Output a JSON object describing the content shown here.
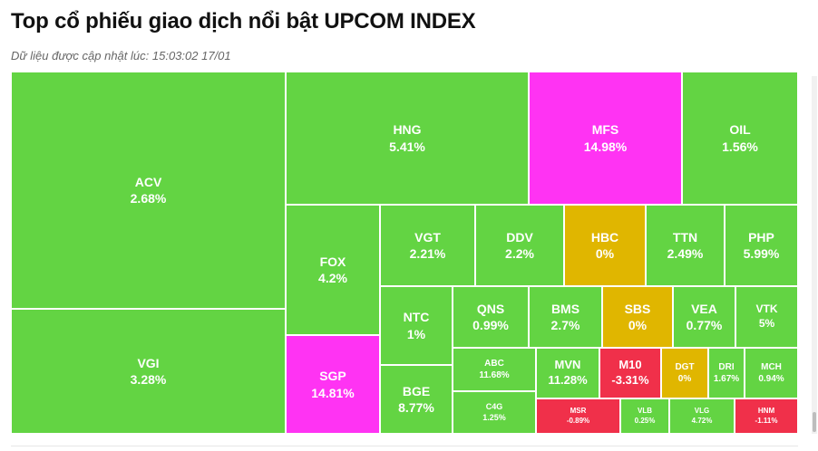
{
  "header": {
    "title": "Top cổ phiếu giao dịch nổi bật UPCOM INDEX",
    "updated_label": "Dữ liệu được cập nhật lúc:",
    "updated_time": "15:03:02 17/01"
  },
  "colors": {
    "up": "#63d443",
    "flat": "#e0b600",
    "down": "#f0304a",
    "ceiling": "#ff33f3"
  },
  "chart_data": {
    "type": "treemap",
    "title": "Top cổ phiếu giao dịch nổi bật UPCOM INDEX",
    "unit": "%",
    "items": [
      {
        "symbol": "ACV",
        "change": 2.68,
        "label": "2.68%",
        "status": "up"
      },
      {
        "symbol": "VGI",
        "change": 3.28,
        "label": "3.28%",
        "status": "up"
      },
      {
        "symbol": "HNG",
        "change": 5.41,
        "label": "5.41%",
        "status": "up"
      },
      {
        "symbol": "MFS",
        "change": 14.98,
        "label": "14.98%",
        "status": "ceiling"
      },
      {
        "symbol": "OIL",
        "change": 1.56,
        "label": "1.56%",
        "status": "up"
      },
      {
        "symbol": "FOX",
        "change": 4.2,
        "label": "4.2%",
        "status": "up"
      },
      {
        "symbol": "SGP",
        "change": 14.81,
        "label": "14.81%",
        "status": "ceiling"
      },
      {
        "symbol": "VGT",
        "change": 2.21,
        "label": "2.21%",
        "status": "up"
      },
      {
        "symbol": "DDV",
        "change": 2.2,
        "label": "2.2%",
        "status": "up"
      },
      {
        "symbol": "HBC",
        "change": 0,
        "label": "0%",
        "status": "flat"
      },
      {
        "symbol": "TTN",
        "change": 2.49,
        "label": "2.49%",
        "status": "up"
      },
      {
        "symbol": "PHP",
        "change": 5.99,
        "label": "5.99%",
        "status": "up"
      },
      {
        "symbol": "NTC",
        "change": 1,
        "label": "1%",
        "status": "up"
      },
      {
        "symbol": "QNS",
        "change": 0.99,
        "label": "0.99%",
        "status": "up"
      },
      {
        "symbol": "BMS",
        "change": 2.7,
        "label": "2.7%",
        "status": "up"
      },
      {
        "symbol": "SBS",
        "change": 0,
        "label": "0%",
        "status": "flat"
      },
      {
        "symbol": "VEA",
        "change": 0.77,
        "label": "0.77%",
        "status": "up"
      },
      {
        "symbol": "VTK",
        "change": 5,
        "label": "5%",
        "status": "up"
      },
      {
        "symbol": "BGE",
        "change": 8.77,
        "label": "8.77%",
        "status": "up"
      },
      {
        "symbol": "ABC",
        "change": 11.68,
        "label": "11.68%",
        "status": "up"
      },
      {
        "symbol": "C4G",
        "change": 1.25,
        "label": "1.25%",
        "status": "up"
      },
      {
        "symbol": "MVN",
        "change": 11.28,
        "label": "11.28%",
        "status": "up"
      },
      {
        "symbol": "M10",
        "change": -3.31,
        "label": "-3.31%",
        "status": "down"
      },
      {
        "symbol": "DGT",
        "change": 0,
        "label": "0%",
        "status": "flat"
      },
      {
        "symbol": "DRI",
        "change": 1.67,
        "label": "1.67%",
        "status": "up"
      },
      {
        "symbol": "MCH",
        "change": 0.94,
        "label": "0.94%",
        "status": "up"
      },
      {
        "symbol": "MSR",
        "change": -0.89,
        "label": "-0.89%",
        "status": "down"
      },
      {
        "symbol": "VLB",
        "change": 0.25,
        "label": "0.25%",
        "status": "up"
      },
      {
        "symbol": "VLG",
        "change": 4.72,
        "label": "4.72%",
        "status": "up"
      },
      {
        "symbol": "HNM",
        "change": -1.11,
        "label": "-1.11%",
        "status": "down"
      }
    ]
  }
}
